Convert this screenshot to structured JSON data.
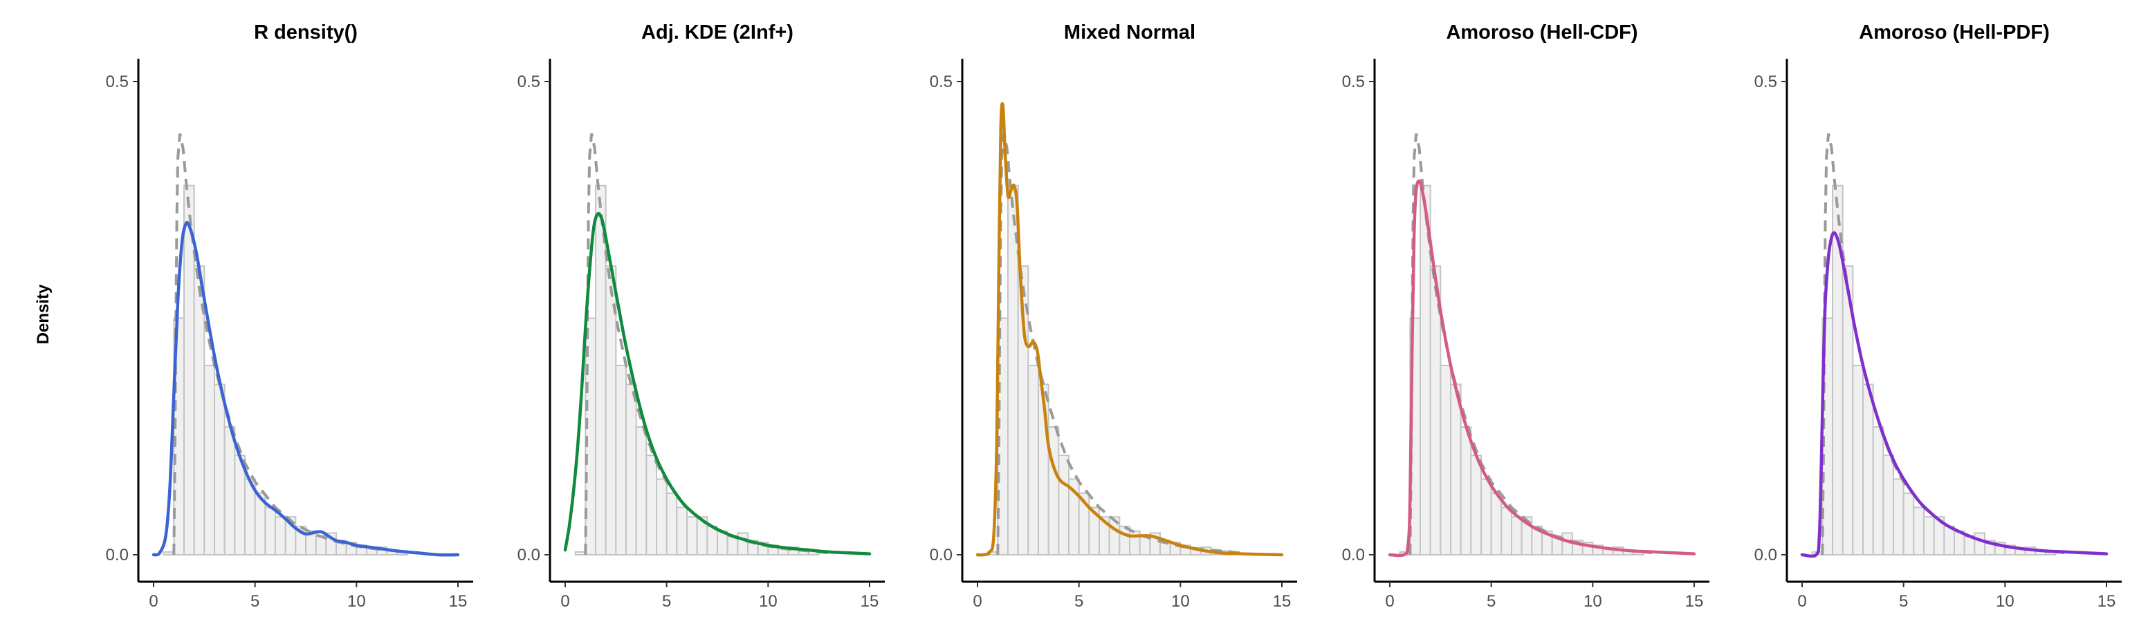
{
  "y_axis_label": "Density",
  "chart_data": {
    "type": "facet",
    "ylabel": "Density",
    "xlim": [
      0,
      15
    ],
    "ylim": [
      0,
      0.5
    ],
    "x_ticks": [
      0,
      5,
      10,
      15
    ],
    "y_ticks": [
      0.0,
      0.5
    ],
    "y_tick_labels": [
      "0.0",
      "0.5"
    ],
    "grid": false,
    "histogram": {
      "bin_width": 0.5,
      "bin_start": 0.5,
      "density": [
        0.003,
        0.25,
        0.39,
        0.305,
        0.2,
        0.18,
        0.135,
        0.105,
        0.08,
        0.065,
        0.05,
        0.04,
        0.04,
        0.03,
        0.025,
        0.02,
        0.023,
        0.015,
        0.013,
        0.01,
        0.007,
        0.008,
        0.005,
        0.004
      ]
    },
    "reference_curve": {
      "x": [
        1.0,
        1.05,
        1.1,
        1.15,
        1.2,
        1.3,
        1.45,
        1.6,
        1.8,
        2.0,
        2.3,
        2.6,
        3.0,
        3.5,
        4.0,
        4.5,
        5.0,
        6.0,
        7.0,
        8.0,
        9.0,
        10.0,
        11.0,
        12.0,
        13.0
      ],
      "y": [
        0.0,
        0.1,
        0.25,
        0.36,
        0.42,
        0.445,
        0.43,
        0.395,
        0.355,
        0.32,
        0.275,
        0.24,
        0.2,
        0.16,
        0.125,
        0.097,
        0.077,
        0.05,
        0.032,
        0.021,
        0.014,
        0.009,
        0.006,
        0.004,
        0.002
      ]
    },
    "panels": [
      {
        "title": "R density()",
        "color": "#3b63d2",
        "x": [
          0,
          0.3,
          0.6,
          0.8,
          1.0,
          1.2,
          1.4,
          1.6,
          1.8,
          2.1,
          2.5,
          3.0,
          3.5,
          4.0,
          4.5,
          5.0,
          5.5,
          6.0,
          6.5,
          7.0,
          7.5,
          8.0,
          8.3,
          8.6,
          9.0,
          9.5,
          10.0,
          11.0,
          12.0,
          13.0,
          14.0,
          15.0
        ],
        "y": [
          0.0,
          0.002,
          0.02,
          0.07,
          0.17,
          0.27,
          0.33,
          0.35,
          0.345,
          0.32,
          0.27,
          0.21,
          0.16,
          0.12,
          0.09,
          0.068,
          0.055,
          0.047,
          0.038,
          0.028,
          0.022,
          0.024,
          0.024,
          0.02,
          0.015,
          0.013,
          0.01,
          0.007,
          0.004,
          0.002,
          0.0,
          0.0
        ]
      },
      {
        "title": "Adj. KDE (2Inf+)",
        "color": "#0f8a3e",
        "x": [
          0,
          0.2,
          0.4,
          0.6,
          0.8,
          1.0,
          1.2,
          1.4,
          1.6,
          1.8,
          2.0,
          2.3,
          2.6,
          3.0,
          3.5,
          4.0,
          4.5,
          5.0,
          5.5,
          6.0,
          7.0,
          8.0,
          9.0,
          10.0,
          11.0,
          12.0,
          13.0,
          14.0,
          15.0
        ],
        "y": [
          0.005,
          0.03,
          0.065,
          0.11,
          0.17,
          0.24,
          0.3,
          0.345,
          0.36,
          0.355,
          0.335,
          0.3,
          0.265,
          0.22,
          0.172,
          0.132,
          0.102,
          0.08,
          0.063,
          0.05,
          0.033,
          0.022,
          0.015,
          0.01,
          0.007,
          0.005,
          0.003,
          0.002,
          0.001
        ]
      },
      {
        "title": "Mixed Normal",
        "color": "#c8820f",
        "x": [
          0,
          0.3,
          0.6,
          0.8,
          0.95,
          1.05,
          1.15,
          1.25,
          1.35,
          1.5,
          1.65,
          1.8,
          1.95,
          2.1,
          2.3,
          2.5,
          2.75,
          2.95,
          3.1,
          3.3,
          3.5,
          3.8,
          4.1,
          4.5,
          5.0,
          5.5,
          6.0,
          6.5,
          7.0,
          7.5,
          8.0,
          8.5,
          9.0,
          10.0,
          11.0,
          12.0,
          13.0,
          15.0
        ],
        "y": [
          0.0,
          0.0,
          0.003,
          0.02,
          0.12,
          0.3,
          0.45,
          0.475,
          0.43,
          0.38,
          0.385,
          0.39,
          0.37,
          0.3,
          0.235,
          0.22,
          0.225,
          0.215,
          0.19,
          0.155,
          0.115,
          0.09,
          0.078,
          0.072,
          0.062,
          0.05,
          0.04,
          0.031,
          0.024,
          0.02,
          0.02,
          0.02,
          0.017,
          0.01,
          0.005,
          0.002,
          0.001,
          0.0
        ]
      },
      {
        "title": "Amoroso (Hell-CDF)",
        "color": "#d45a8a",
        "x": [
          0,
          0.7,
          0.9,
          1.0,
          1.1,
          1.2,
          1.3,
          1.45,
          1.6,
          1.8,
          2.0,
          2.3,
          2.6,
          3.0,
          3.5,
          4.0,
          4.5,
          5.0,
          5.5,
          6.0,
          7.0,
          8.0,
          9.0,
          10.0,
          11.0,
          12.0,
          13.0,
          14.0,
          15.0
        ],
        "y": [
          0.0,
          0.0,
          0.01,
          0.06,
          0.22,
          0.34,
          0.385,
          0.395,
          0.385,
          0.36,
          0.33,
          0.285,
          0.245,
          0.2,
          0.155,
          0.12,
          0.093,
          0.073,
          0.058,
          0.046,
          0.03,
          0.02,
          0.013,
          0.009,
          0.006,
          0.004,
          0.003,
          0.002,
          0.001
        ]
      },
      {
        "title": "Amoroso (Hell-PDF)",
        "color": "#7f2fcd",
        "x": [
          0,
          0.7,
          0.85,
          0.95,
          1.05,
          1.15,
          1.3,
          1.45,
          1.6,
          1.8,
          2.0,
          2.3,
          2.6,
          3.0,
          3.5,
          4.0,
          4.5,
          5.0,
          5.5,
          6.0,
          7.0,
          8.0,
          9.0,
          10.0,
          11.0,
          12.0,
          13.0,
          14.0,
          15.0
        ],
        "y": [
          0.0,
          0.0,
          0.02,
          0.1,
          0.2,
          0.27,
          0.315,
          0.335,
          0.34,
          0.33,
          0.31,
          0.275,
          0.24,
          0.2,
          0.16,
          0.127,
          0.1,
          0.08,
          0.064,
          0.051,
          0.033,
          0.022,
          0.014,
          0.009,
          0.006,
          0.004,
          0.003,
          0.002,
          0.001
        ]
      }
    ]
  }
}
